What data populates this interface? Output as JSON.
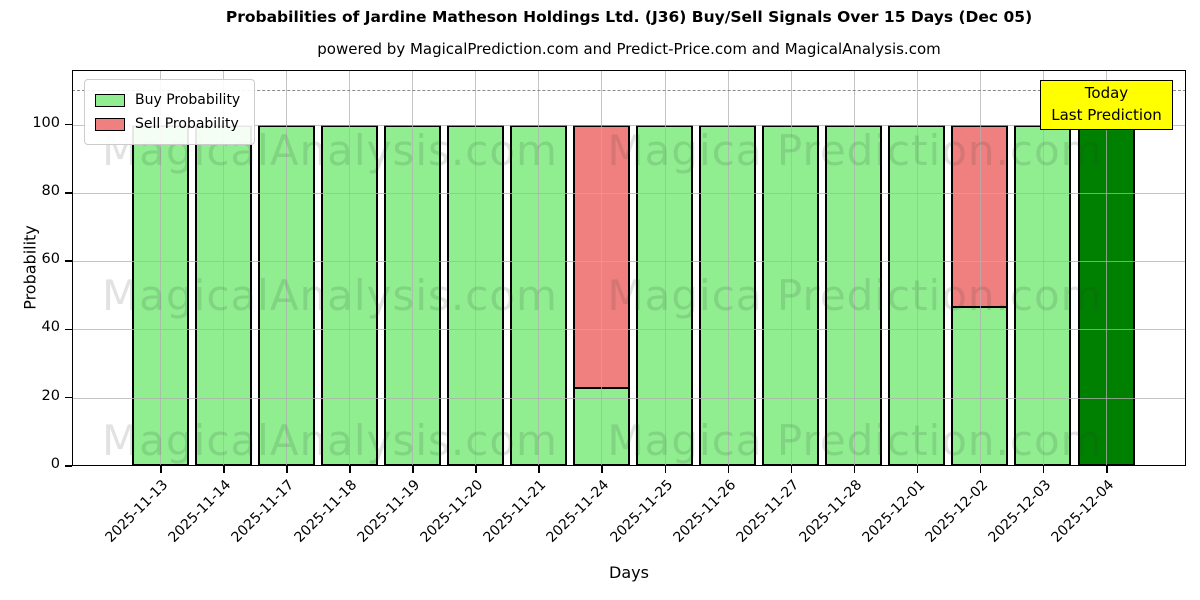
{
  "title": "Probabilities of Jardine Matheson Holdings Ltd. (J36) Buy/Sell Signals Over 15 Days (Dec 05)",
  "subtitle": "powered by MagicalPrediction.com and Predict-Price.com and MagicalAnalysis.com",
  "legend": {
    "items": [
      {
        "label": "Buy Probability",
        "color": "#90ee90"
      },
      {
        "label": "Sell Probability",
        "color": "#f08080"
      }
    ]
  },
  "annotation": {
    "line1": "Today",
    "line2": "Last Prediction",
    "bg_color": "#ffff00"
  },
  "watermarks": {
    "left": "MagicalAnalysis.com",
    "right": "Magica Prediction.com"
  },
  "colors": {
    "buy": "#90ee90",
    "sell": "#f08080",
    "today_bar": "#008000",
    "bar_edge": "#000000",
    "grid": "#b0b0b0",
    "dashed_line": "#8a8a8a",
    "annotation_bg": "#ffff00"
  },
  "chart_data": {
    "type": "bar",
    "stacked": true,
    "title": "Probabilities of Jardine Matheson Holdings Ltd. (J36) Buy/Sell Signals Over 15 Days (Dec 05)",
    "xlabel": "Days",
    "ylabel": "Probability",
    "categories": [
      "2025-11-13",
      "2025-11-14",
      "2025-11-17",
      "2025-11-18",
      "2025-11-19",
      "2025-11-20",
      "2025-11-21",
      "2025-11-24",
      "2025-11-25",
      "2025-11-26",
      "2025-11-27",
      "2025-11-28",
      "2025-12-01",
      "2025-12-02",
      "2025-12-03",
      "2025-12-04"
    ],
    "series": [
      {
        "name": "Buy Probability",
        "color": "#90ee90",
        "values": [
          100,
          100,
          100,
          100,
          100,
          100,
          100,
          23,
          100,
          100,
          100,
          100,
          100,
          47,
          100,
          100
        ]
      },
      {
        "name": "Sell Probability",
        "color": "#f08080",
        "values": [
          0,
          0,
          0,
          0,
          0,
          0,
          0,
          77,
          0,
          0,
          0,
          0,
          0,
          53,
          0,
          0
        ]
      }
    ],
    "today_index": 15,
    "dashed_line_y": 110,
    "ylim": [
      0,
      116
    ],
    "yticks": [
      0,
      20,
      40,
      60,
      80,
      100
    ],
    "grid": true,
    "legend_position": "upper left"
  }
}
